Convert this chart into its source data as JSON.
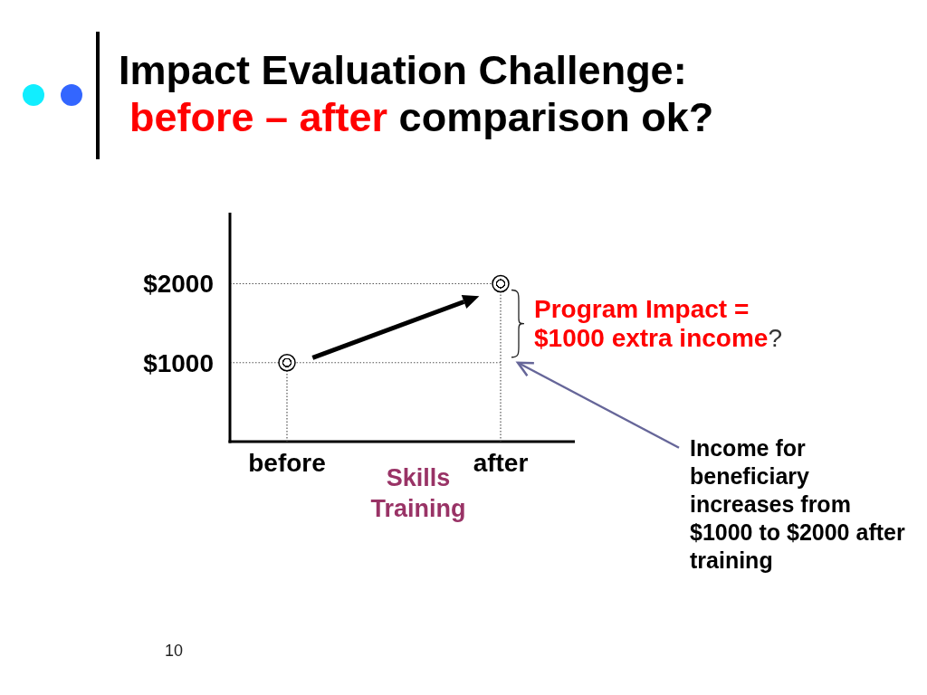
{
  "chart_data": {
    "type": "lollipop",
    "title": "Impact Evaluation Challenge:",
    "subtitle": "before – after comparison ok?",
    "xlabel": "Skills Training",
    "categories": [
      "before",
      "after"
    ],
    "values": [
      1000,
      2000
    ],
    "color": "#000000",
    "marker": "circle",
    "line_style": "dotted",
    "ylim": [
      0,
      2900
    ],
    "yticks": [
      {
        "value": 1000,
        "label": "$1000"
      },
      {
        "value": 2000,
        "label": "$2000"
      }
    ],
    "ref_lines": [
      {
        "axis": "y",
        "value": 1000,
        "line_style": "dotted",
        "color": "#555555"
      },
      {
        "axis": "y",
        "value": 2000,
        "line_style": "dotted",
        "color": "#555555"
      }
    ],
    "annotations": [
      "Program Impact = $1000 extra income?",
      "Income for beneficiary increases from $1000 to $2000 after training",
      "10"
    ]
  }
}
